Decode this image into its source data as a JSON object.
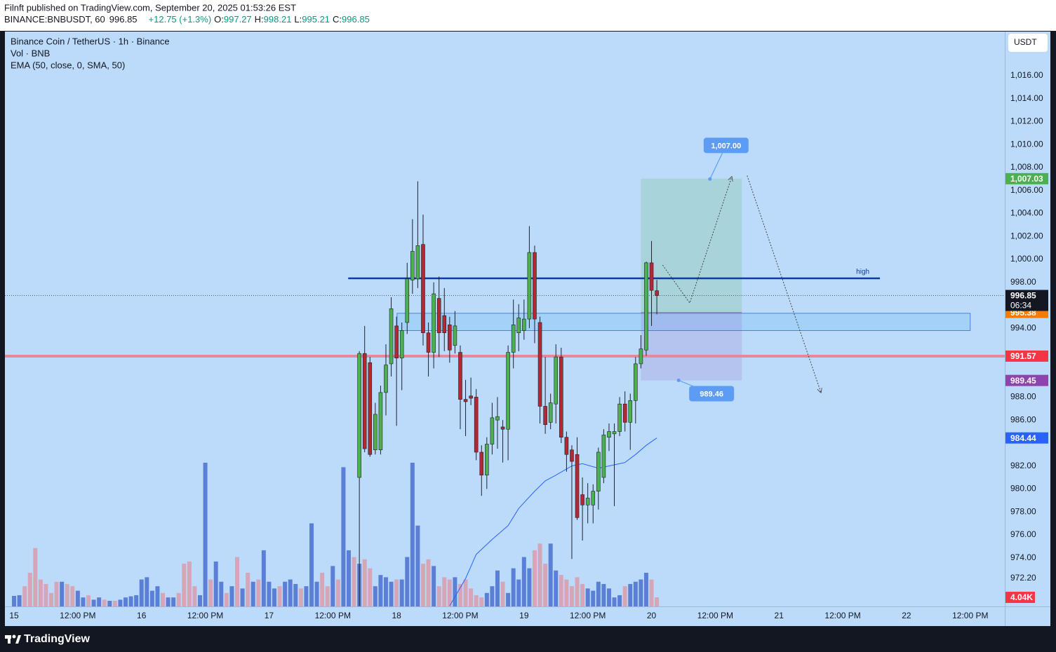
{
  "header": {
    "publisher": "Filnft published on TradingView.com, September 20, 2025 01:53:26 EST",
    "symbol": "BINANCE:BNBUSDT, 60",
    "change": "+12.75 (+1.3%)",
    "o": "O:",
    "h": "H:",
    "l": "L:",
    "c": "C:"
  },
  "legend": [
    "Binance Coin / TetherUS · 1h · Binance",
    "Vol · BNB",
    "EMA (50, close, 0, SMA, 50)"
  ],
  "currency": "USDT",
  "footer": {
    "brand": "TradingView"
  },
  "chart_data": {
    "type": "candlestick",
    "x": [
      65,
      66,
      67,
      68,
      69,
      70,
      71,
      72,
      73,
      74,
      75,
      76,
      77,
      78,
      79,
      80,
      81,
      82,
      83,
      84,
      85,
      86,
      87,
      88,
      89,
      90,
      91,
      92,
      93,
      94,
      95,
      96,
      97,
      98,
      99,
      100,
      101,
      102,
      103,
      104,
      105,
      106,
      107,
      108,
      109,
      110,
      111,
      112,
      113,
      114,
      115,
      116,
      117,
      118,
      119,
      120,
      121
    ],
    "open": [
      981,
      991.8,
      991,
      983.4,
      983.4,
      988.4,
      990.9,
      994.2,
      991.4,
      994.5,
      998.2,
      998.3,
      1001.3,
      993.6,
      991.9,
      996.6,
      995.1,
      994.3,
      992.5,
      991.9,
      987.8,
      988.1,
      988,
      983.2,
      981.2,
      983.9,
      986,
      985.4,
      985.2,
      991.9,
      993.6,
      993.8,
      994.8,
      1000.6,
      994.5,
      987.2,
      985.8,
      987.4,
      991.5,
      984.5,
      983.4,
      983,
      979.5,
      978.6,
      978.6,
      979.8,
      981,
      984.5,
      984.8,
      985,
      987.4,
      985.8,
      987.7,
      990.9,
      992.1,
      999.7,
      997.27
    ],
    "high": [
      992,
      994.2,
      991.5,
      987.5,
      989,
      992.6,
      996.7,
      995,
      994.5,
      999.7,
      1003.5,
      1006.8,
      1003.9,
      994.5,
      998,
      998.5,
      997.5,
      995,
      995.5,
      992.5,
      989.5,
      989.7,
      988.7,
      983.8,
      984.5,
      987.5,
      988,
      986,
      992.5,
      996.5,
      996.1,
      996.5,
      1002.9,
      1001.2,
      995,
      991.5,
      988.3,
      992.6,
      992.3,
      985,
      983.8,
      984.5,
      981,
      980.5,
      980.4,
      983.6,
      985.2,
      985.7,
      985.7,
      988,
      988.5,
      988.3,
      991.5,
      993.4,
      999.8,
      1001.6,
      998.21
    ],
    "low": [
      969.8,
      983.2,
      982.8,
      983,
      983,
      986.4,
      989.8,
      985.5,
      988.6,
      993.5,
      997,
      997.5,
      992.5,
      989.8,
      990.5,
      991.5,
      992,
      991,
      991.8,
      985.2,
      984.6,
      987.3,
      982.5,
      979.4,
      980,
      983,
      983.5,
      982.3,
      982.5,
      990.5,
      992,
      993,
      994,
      992.7,
      985.7,
      984.8,
      985.2,
      985.7,
      984,
      981.5,
      973.9,
      977.3,
      975.5,
      977,
      977,
      978.2,
      980.5,
      983.3,
      978.5,
      984.6,
      985,
      983.4,
      985.7,
      990.5,
      991.6,
      994.2,
      995.21
    ],
    "close": [
      991.8,
      983.5,
      983,
      986.5,
      988.4,
      990.8,
      995.7,
      991.4,
      993.8,
      998.3,
      1000.7,
      1001.2,
      993.6,
      991.9,
      997,
      993.6,
      993.6,
      992.1,
      994.2,
      987.8,
      987.6,
      987.9,
      983.2,
      981.2,
      983.9,
      986.2,
      986.3,
      985.2,
      991.9,
      994.3,
      994.9,
      994.8,
      1000.6,
      994.8,
      987.2,
      985.6,
      987.5,
      991.5,
      984.5,
      983,
      982.4,
      977.5,
      978.6,
      979.2,
      979.8,
      983.2,
      984.7,
      985,
      985,
      987.4,
      985.8,
      987.7,
      990.9,
      992.2,
      999.7,
      997.3,
      996.85
    ],
    "up_color": "#4caf50",
    "down_color": "#b22833",
    "wick_color": "#1e222d",
    "xlim": [
      -1.72,
      186.5
    ],
    "xticks": [
      {
        "value": 0,
        "label": "15"
      },
      {
        "value": 12,
        "label": "12:00 PM"
      },
      {
        "value": 24,
        "label": "16"
      },
      {
        "value": 36,
        "label": "12:00 PM"
      },
      {
        "value": 48,
        "label": "17"
      },
      {
        "value": 60,
        "label": "12:00 PM"
      },
      {
        "value": 72,
        "label": "18"
      },
      {
        "value": 84,
        "label": "12:00 PM"
      },
      {
        "value": 96,
        "label": "19"
      },
      {
        "value": 108,
        "label": "12:00 PM"
      },
      {
        "value": 120,
        "label": "20"
      },
      {
        "value": 132,
        "label": "12:00 PM"
      },
      {
        "value": 144,
        "label": "21"
      },
      {
        "value": 156,
        "label": "12:00 PM"
      },
      {
        "value": 168,
        "label": "22"
      },
      {
        "value": 180,
        "label": "12:00 PM"
      }
    ],
    "ylim": [
      969.76,
      1019.85
    ],
    "yticks": [
      {
        "value": 1016,
        "label": "1,016.00"
      },
      {
        "value": 1014,
        "label": "1,014.00"
      },
      {
        "value": 1012,
        "label": "1,012.00"
      },
      {
        "value": 1010,
        "label": "1,010.00"
      },
      {
        "value": 1008,
        "label": "1,008.00"
      },
      {
        "value": 1006,
        "label": "1,006.00"
      },
      {
        "value": 1004,
        "label": "1,004.00"
      },
      {
        "value": 1002,
        "label": "1,002.00"
      },
      {
        "value": 1000,
        "label": "1,000.00"
      },
      {
        "value": 998,
        "label": "998.00"
      },
      {
        "value": 994,
        "label": "994.00"
      },
      {
        "value": 988,
        "label": "988.00"
      },
      {
        "value": 986,
        "label": "986.00"
      },
      {
        "value": 982,
        "label": "982.00"
      },
      {
        "value": 980,
        "label": "980.00"
      },
      {
        "value": 978,
        "label": "978.00"
      },
      {
        "value": 976,
        "label": "976.00"
      },
      {
        "value": 974,
        "label": "974.00"
      },
      {
        "value": 972.2,
        "label": "972.20"
      }
    ],
    "grid": false,
    "volume": {
      "x": [
        0,
        1,
        2,
        3,
        4,
        5,
        6,
        7,
        8,
        9,
        10,
        11,
        12,
        13,
        14,
        15,
        16,
        17,
        18,
        19,
        20,
        21,
        22,
        23,
        24,
        25,
        26,
        27,
        28,
        29,
        30,
        31,
        32,
        33,
        34,
        35,
        36,
        37,
        38,
        39,
        40,
        41,
        42,
        43,
        44,
        45,
        46,
        47,
        48,
        49,
        50,
        51,
        52,
        53,
        54,
        55,
        56,
        57,
        58,
        59,
        60,
        61,
        62,
        63,
        64,
        65,
        66,
        67,
        68,
        69,
        70,
        71,
        72,
        73,
        74,
        75,
        76,
        77,
        78,
        79,
        80,
        81,
        82,
        83,
        84,
        85,
        86,
        87,
        88,
        89,
        90,
        91,
        92,
        93,
        94,
        95,
        96,
        97,
        98,
        99,
        100,
        101,
        102,
        103,
        104,
        105,
        106,
        107,
        108,
        109,
        110,
        111,
        112,
        113,
        114,
        115,
        116,
        117,
        118,
        119,
        120,
        121
      ],
      "values": [
        4.7,
        5,
        9,
        15,
        26,
        12,
        10,
        6,
        11,
        11,
        10,
        9,
        7,
        4,
        5,
        3,
        4,
        3,
        2.5,
        2.5,
        3,
        4,
        4.5,
        5,
        12,
        13,
        7,
        9,
        6,
        4,
        4,
        6,
        19,
        20,
        9,
        5,
        64,
        12,
        20,
        11,
        6,
        9,
        22,
        8,
        15,
        11,
        12,
        25,
        11,
        8,
        9,
        11,
        12,
        10,
        8,
        9,
        37,
        11,
        15,
        9,
        18,
        12,
        62,
        25,
        22,
        19,
        21,
        17,
        9,
        14,
        13,
        11,
        12,
        12,
        22,
        64,
        36,
        19,
        21,
        18,
        9,
        13,
        12,
        13,
        10,
        12,
        8,
        5,
        4,
        6,
        9,
        16,
        11,
        6,
        17,
        12,
        22,
        17,
        25,
        28,
        19,
        28,
        16,
        14,
        12,
        9,
        13,
        10,
        8,
        7,
        11,
        10,
        8,
        4,
        5,
        9,
        10,
        11,
        12,
        15,
        12,
        4.04
      ],
      "up": [
        1,
        1,
        0,
        0,
        0,
        0,
        0,
        0,
        0,
        1,
        0,
        0,
        1,
        1,
        0,
        1,
        1,
        0,
        1,
        0,
        1,
        1,
        1,
        1,
        1,
        1,
        1,
        1,
        0,
        1,
        1,
        0,
        0,
        0,
        0,
        1,
        1,
        0,
        1,
        1,
        0,
        1,
        0,
        1,
        0,
        1,
        0,
        1,
        1,
        1,
        0,
        1,
        1,
        1,
        0,
        1,
        1,
        1,
        0,
        0,
        1,
        0,
        1,
        1,
        0,
        1,
        0,
        0,
        1,
        1,
        1,
        1,
        0,
        1,
        1,
        1,
        1,
        0,
        0,
        1,
        0,
        0,
        0,
        1,
        0,
        0,
        0,
        0,
        0,
        1,
        1,
        1,
        0,
        1,
        1,
        1,
        1,
        1,
        0,
        0,
        0,
        1,
        1,
        0,
        0,
        0,
        0,
        0,
        1,
        1,
        1,
        1,
        1,
        1,
        1,
        0,
        1,
        1,
        1,
        1,
        0,
        0
      ],
      "vlim": [
        0,
        256
      ],
      "up_color": "#5b7fd6",
      "down_color": "#d4a6b8",
      "last_label": "4.04K"
    },
    "ema": {
      "color": "#2962ff",
      "x": [
        82,
        85,
        87,
        90,
        93,
        95,
        98,
        100,
        102,
        105,
        107,
        110,
        112,
        115,
        117,
        119,
        121
      ],
      "values": [
        969.8,
        972.2,
        974.3,
        975.6,
        976.8,
        978.3,
        979.8,
        980.7,
        981.2,
        982,
        982.2,
        981.8,
        982,
        982.3,
        983,
        983.8,
        984.44
      ]
    },
    "countdown": "06:34",
    "last_color": "#131722",
    "levels": [
      {
        "value": 991.57,
        "color": "#f23645",
        "line_color": "#e8879a"
      }
    ],
    "high_line": {
      "name": "high",
      "price": 998.35,
      "x": [
        62.9,
        163
      ],
      "color": "#0d3c9e"
    },
    "zone": {
      "x": [
        72.1,
        180
      ],
      "price": [
        993.8,
        995.3
      ],
      "color": "#90c8f5",
      "border": "#2a6fdb"
    },
    "position": {
      "x": [
        118,
        137
      ],
      "target": {
        "value": 1007.03,
        "label": "1,007.03"
      },
      "entry": 995.38,
      "stop": 989.45,
      "target_color": "#4caf50",
      "entry_color": "#f57c00",
      "stop_color": "#8e44ad"
    },
    "bubbles": [
      {
        "price": 1007,
        "label": "1,007.00",
        "x": 131
      },
      {
        "price": 989.46,
        "x": 125.1
      }
    ],
    "bubble_color": "#5d9cf5",
    "paths": [
      {
        "points": [
          [
            122.1,
            999.5
          ],
          [
            127.2,
            996.2
          ],
          [
            135.1,
            1007.2
          ]
        ]
      },
      {
        "points": [
          [
            138,
            1007.3
          ],
          [
            151.9,
            988.4
          ]
        ]
      }
    ]
  }
}
